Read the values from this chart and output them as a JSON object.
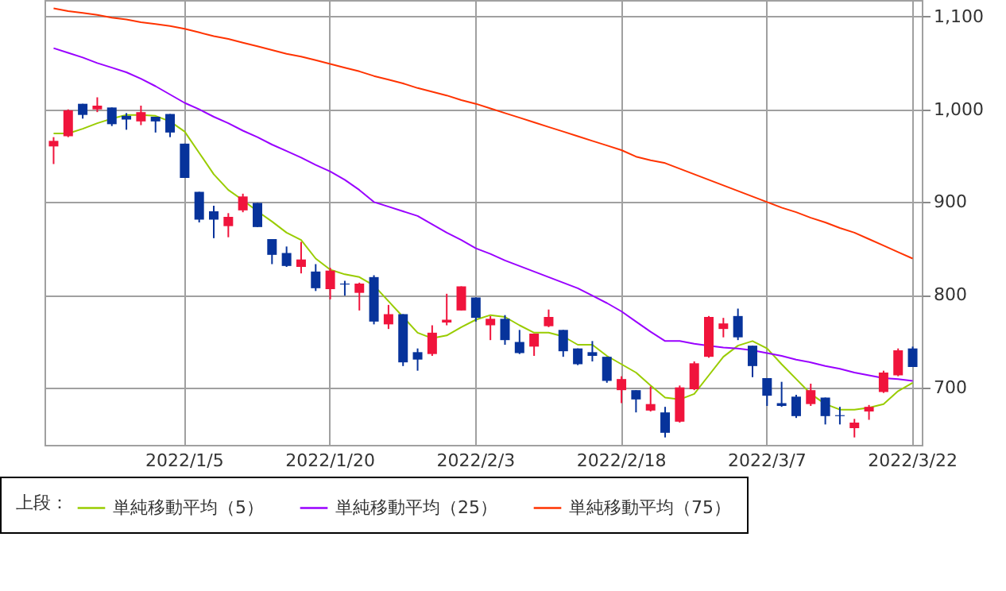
{
  "chart_data": {
    "type": "candlestick",
    "categories": [
      null,
      null,
      null,
      null,
      null,
      null,
      null,
      null,
      null,
      "2022/1/5",
      null,
      null,
      null,
      null,
      null,
      null,
      null,
      null,
      null,
      "2022/1/20",
      null,
      null,
      null,
      null,
      null,
      null,
      null,
      null,
      null,
      "2022/2/3",
      null,
      null,
      null,
      null,
      null,
      null,
      null,
      null,
      null,
      "2022/2/18",
      null,
      null,
      null,
      null,
      null,
      null,
      null,
      null,
      null,
      "2022/3/7",
      null,
      null,
      null,
      null,
      null,
      null,
      null,
      null,
      null,
      "2022/3/22"
    ],
    "ohlc": [
      [
        960,
        970,
        941,
        966
      ],
      [
        971,
        1000,
        970,
        999
      ],
      [
        1006,
        1006,
        990,
        994
      ],
      [
        1000,
        1013,
        997,
        1004
      ],
      [
        1002,
        1002,
        982,
        984
      ],
      [
        993,
        996,
        978,
        989
      ],
      [
        987,
        1004,
        983,
        997
      ],
      [
        992,
        992,
        975,
        987
      ],
      [
        995,
        995,
        970,
        975
      ],
      [
        963,
        963,
        926,
        926
      ],
      [
        911,
        911,
        878,
        881
      ],
      [
        890,
        896,
        861,
        881
      ],
      [
        874,
        888,
        862,
        884
      ],
      [
        891,
        909,
        889,
        906
      ],
      [
        899,
        899,
        873,
        873
      ],
      [
        860,
        860,
        833,
        843
      ],
      [
        845,
        852,
        830,
        831
      ],
      [
        830,
        857,
        823,
        838
      ],
      [
        825,
        833,
        804,
        807
      ],
      [
        806,
        829,
        795,
        826
      ],
      [
        812,
        815,
        799,
        811
      ],
      [
        802,
        813,
        783,
        812
      ],
      [
        819,
        821,
        768,
        771
      ],
      [
        768,
        789,
        763,
        779
      ],
      [
        779,
        779,
        723,
        727
      ],
      [
        738,
        742,
        718,
        730
      ],
      [
        736,
        767,
        734,
        759
      ],
      [
        770,
        801,
        767,
        773
      ],
      [
        783,
        809,
        783,
        809
      ],
      [
        797,
        797,
        771,
        775
      ],
      [
        767,
        777,
        751,
        774
      ],
      [
        774,
        778,
        746,
        751
      ],
      [
        749,
        762,
        736,
        737
      ],
      [
        744,
        758,
        734,
        758
      ],
      [
        766,
        784,
        765,
        776
      ],
      [
        762,
        762,
        733,
        739
      ],
      [
        742,
        742,
        724,
        725
      ],
      [
        738,
        750,
        728,
        734
      ],
      [
        733,
        733,
        705,
        707
      ],
      [
        697,
        712,
        683,
        709
      ],
      [
        697,
        697,
        673,
        687
      ],
      [
        675,
        701,
        674,
        682
      ],
      [
        673,
        679,
        646,
        651
      ],
      [
        663,
        702,
        662,
        700
      ],
      [
        698,
        728,
        697,
        726
      ],
      [
        733,
        777,
        732,
        776
      ],
      [
        763,
        775,
        754,
        769
      ],
      [
        777,
        785,
        751,
        754
      ],
      [
        745,
        745,
        711,
        723
      ],
      [
        710,
        710,
        680,
        691
      ],
      [
        683,
        706,
        679,
        680
      ],
      [
        690,
        692,
        667,
        669
      ],
      [
        682,
        704,
        680,
        697
      ],
      [
        689,
        689,
        660,
        669
      ],
      [
        670,
        679,
        660,
        669
      ],
      [
        656,
        666,
        646,
        662
      ],
      [
        674,
        681,
        665,
        679
      ],
      [
        695,
        718,
        694,
        716
      ],
      [
        713,
        742,
        712,
        740
      ],
      [
        742,
        744,
        722,
        722
      ]
    ],
    "colors": [
      "#f0143c",
      "#f0143c",
      "#07339b",
      "#f0143c",
      "#07339b",
      "#07339b",
      "#f0143c",
      "#07339b",
      "#07339b",
      "#07339b",
      "#07339b",
      "#07339b",
      "#f0143c",
      "#f0143c",
      "#07339b",
      "#07339b",
      "#07339b",
      "#f0143c",
      "#07339b",
      "#f0143c",
      "#07339b",
      "#f0143c",
      "#07339b",
      "#f0143c",
      "#07339b",
      "#07339b",
      "#f0143c",
      "#f0143c",
      "#f0143c",
      "#07339b",
      "#f0143c",
      "#07339b",
      "#07339b",
      "#f0143c",
      "#f0143c",
      "#07339b",
      "#07339b",
      "#07339b",
      "#07339b",
      "#f0143c",
      "#07339b",
      "#f0143c",
      "#07339b",
      "#f0143c",
      "#f0143c",
      "#f0143c",
      "#f0143c",
      "#07339b",
      "#07339b",
      "#07339b",
      "#07339b",
      "#07339b",
      "#f0143c",
      "#07339b",
      "#07339b",
      "#f0143c",
      "#f0143c",
      "#f0143c",
      "#f0143c",
      "#07339b"
    ],
    "series": [
      {
        "type": "line",
        "name": "単純移動平均（5）",
        "color": "#99cc00",
        "values": [
          974,
          974,
          979,
          985,
          990,
          994,
          994,
          993,
          987,
          976,
          953,
          930,
          913,
          902,
          890,
          879,
          867,
          859,
          839,
          827,
          822,
          819,
          810,
          793,
          776,
          759,
          753,
          756,
          765,
          773,
          778,
          776,
          767,
          759,
          759,
          755,
          746,
          746,
          734,
          725,
          716,
          702,
          689,
          687,
          693,
          713,
          733,
          745,
          750,
          742,
          725,
          709,
          693,
          682,
          676,
          676,
          678,
          682,
          696,
          705
        ]
      },
      {
        "type": "line",
        "name": "単純移動平均（25）",
        "color": "#9900ff",
        "values": [
          1066,
          1061,
          1056,
          1050,
          1045,
          1040,
          1033,
          1025,
          1016,
          1007,
          1000,
          992,
          985,
          977,
          970,
          962,
          955,
          948,
          940,
          933,
          924,
          913,
          900,
          895,
          890,
          885,
          876,
          867,
          859,
          850,
          844,
          837,
          831,
          825,
          819,
          813,
          807,
          799,
          791,
          782,
          771,
          760,
          750,
          750,
          747,
          745,
          743,
          742,
          740,
          737,
          734,
          730,
          727,
          723,
          720,
          716,
          713,
          710,
          709,
          707
        ]
      },
      {
        "type": "line",
        "name": "単純移動平均（75）",
        "color": "#ff3300",
        "values": [
          1109,
          1106,
          1104,
          1102,
          1099,
          1097,
          1094,
          1092,
          1090,
          1087,
          1083,
          1079,
          1076,
          1072,
          1068,
          1064,
          1060,
          1057,
          1053,
          1049,
          1045,
          1041,
          1036,
          1032,
          1028,
          1023,
          1019,
          1015,
          1010,
          1006,
          1001,
          996,
          991,
          986,
          981,
          976,
          971,
          966,
          961,
          956,
          949,
          945,
          942,
          936,
          930,
          924,
          918,
          912,
          906,
          900,
          894,
          889,
          883,
          878,
          872,
          867,
          860,
          853,
          846,
          839
        ]
      }
    ],
    "ylim": [
      638,
      1118
    ],
    "yticks": [
      700,
      800,
      900,
      {
        "value": 1000,
        "label": "1,000"
      },
      {
        "value": 1100,
        "label": "1,100"
      }
    ],
    "grid": true,
    "legend": "bottom",
    "legend_title": "上段："
  }
}
